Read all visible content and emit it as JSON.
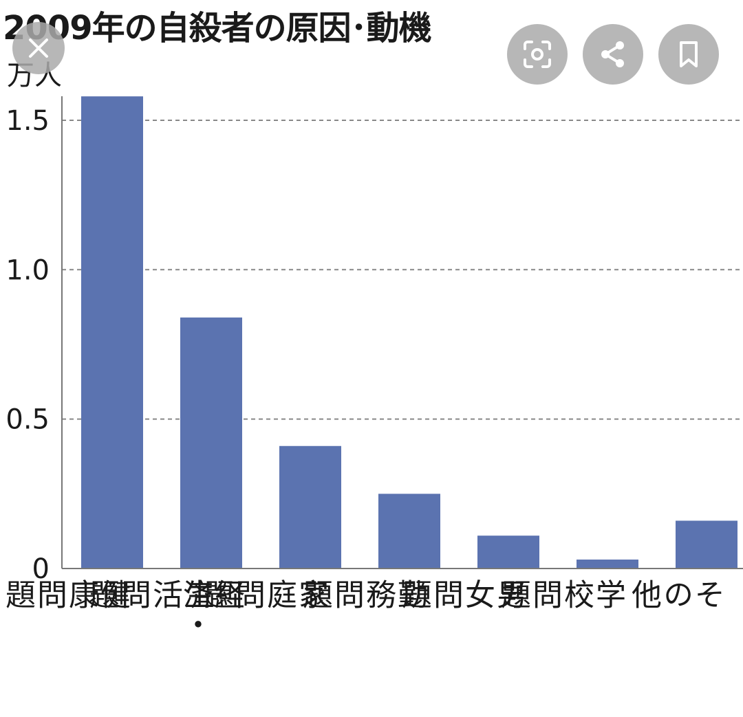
{
  "chart_data": {
    "type": "bar",
    "title": "2009年の自殺者の原因･動機",
    "ylabel": "万人",
    "ylim": [
      0,
      1.6
    ],
    "yticks": [
      "0",
      "0.5",
      "1.0",
      "1.5"
    ],
    "grid": "horizontal dashed",
    "categories": [
      [
        "健康問題"
      ],
      [
        "経済・",
        "生活問題"
      ],
      [
        "家庭問題"
      ],
      [
        "勤務問題"
      ],
      [
        "男女問題"
      ],
      [
        "学校問題"
      ],
      [
        "その他"
      ]
    ],
    "values": [
      1.58,
      0.84,
      0.41,
      0.25,
      0.11,
      0.03,
      0.16
    ],
    "bar_color": "#5b73b0"
  },
  "overlay": {
    "close_icon": "close-icon",
    "lens_icon": "lens-search-icon",
    "share_icon": "share-icon",
    "bookmark_icon": "bookmark-icon",
    "button_color": "#aaaaaa"
  }
}
